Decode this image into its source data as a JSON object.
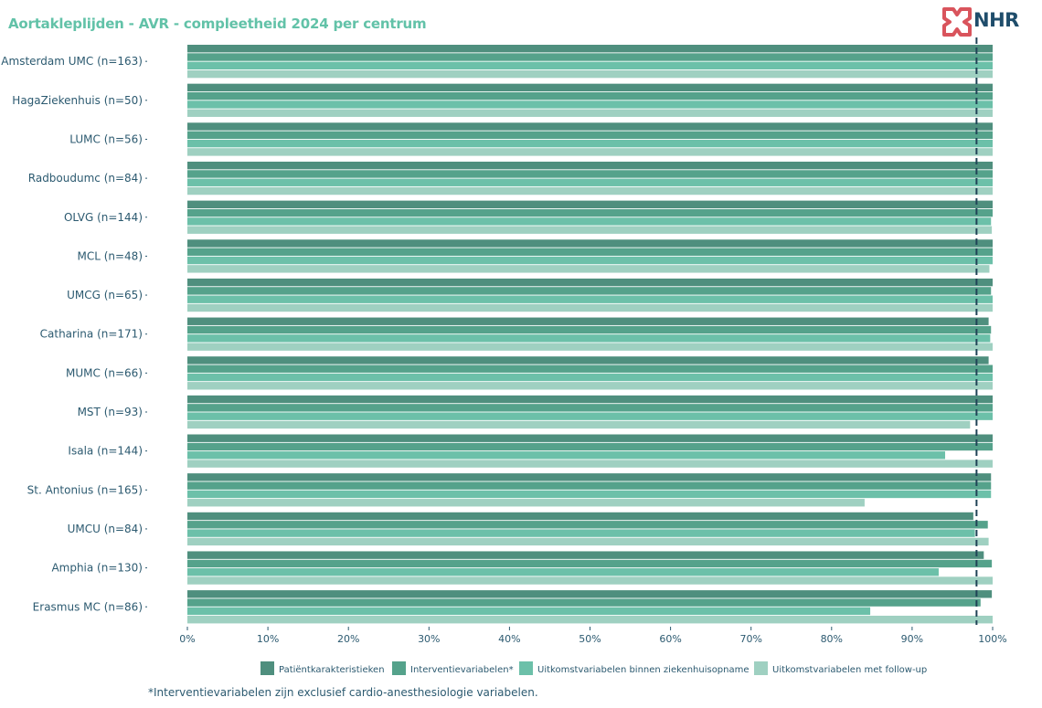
{
  "title": "Aortakleplijden - AVR - compleetheid 2024 per centrum",
  "logo_text": "NHR",
  "footnote": "*Interventievariabelen zijn exclusief cardio-anesthesiologie variabelen.",
  "colors": [
    "#4f8f7e",
    "#55a28b",
    "#6cc0a9",
    "#9fd0c1"
  ],
  "chart_data": {
    "type": "bar",
    "orientation": "horizontal",
    "title": "Aortakleplijden - AVR - compleetheid 2024 per centrum",
    "categories": [
      "Amsterdam UMC (n=163)",
      "HagaZiekenhuis (n=50)",
      "LUMC (n=56)",
      "Radboudumc (n=84)",
      "OLVG (n=144)",
      "MCL (n=48)",
      "UMCG (n=65)",
      "Catharina (n=171)",
      "MUMC (n=66)",
      "MST (n=93)",
      "Isala (n=144)",
      "St. Antonius (n=165)",
      "UMCU (n=84)",
      "Amphia (n=130)",
      "Erasmus MC (n=86)"
    ],
    "series": [
      {
        "name": "Patiëntkarakteristieken",
        "values": [
          100,
          100,
          100,
          100,
          100,
          100,
          100,
          99.5,
          99.5,
          100,
          100,
          99.8,
          97.6,
          98.9,
          99.9
        ]
      },
      {
        "name": "Interventievariabelen*",
        "values": [
          100,
          100,
          100,
          100,
          100,
          100,
          99.8,
          99.8,
          100,
          100,
          100,
          99.8,
          99.4,
          99.9,
          98.5
        ]
      },
      {
        "name": "Uitkomstvariabelen binnen ziekenhuisopname",
        "values": [
          100,
          100,
          100,
          100,
          99.8,
          100,
          100,
          99.7,
          100,
          100,
          94.1,
          99.8,
          97.8,
          93.3,
          84.8
        ]
      },
      {
        "name": "Uitkomstvariabelen met follow-up",
        "values": [
          100,
          100,
          100,
          100,
          99.9,
          99.6,
          100,
          100,
          100,
          97.2,
          100,
          84.1,
          99.5,
          100,
          100
        ]
      }
    ],
    "reference_line": 98,
    "xlim": [
      0,
      100
    ],
    "x_ticks": [
      "0%",
      "10%",
      "20%",
      "30%",
      "40%",
      "50%",
      "60%",
      "70%",
      "80%",
      "90%",
      "100%"
    ],
    "x_tick_values": [
      0,
      10,
      20,
      30,
      40,
      50,
      60,
      70,
      80,
      90,
      100
    ],
    "xlabel": "",
    "ylabel": "",
    "grid": false,
    "legend_position": "bottom"
  }
}
